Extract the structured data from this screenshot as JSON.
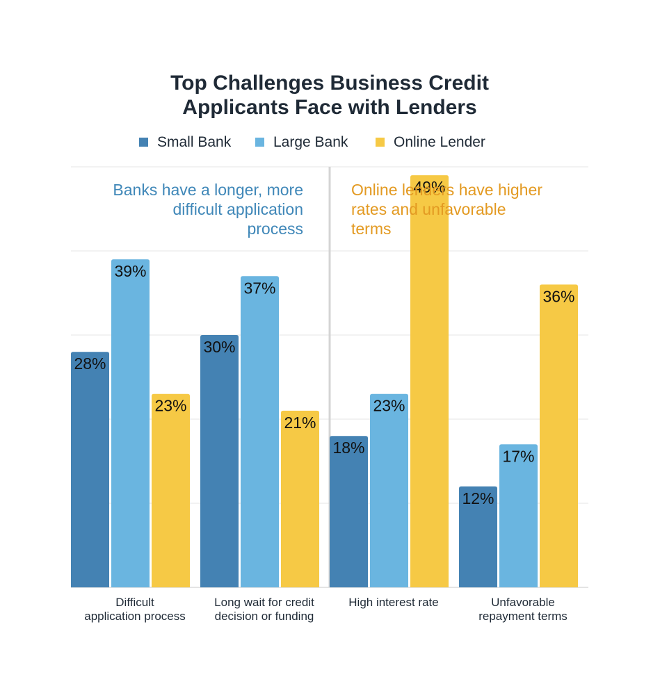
{
  "chart_data": {
    "type": "bar",
    "title_lines": [
      "Top Challenges Business Credit",
      "Applicants Face with Lenders"
    ],
    "categories": [
      [
        "Difficult",
        "application process"
      ],
      [
        "Long wait for credit",
        "decision or funding"
      ],
      [
        "High interest rate"
      ],
      [
        "Unfavorable",
        "repayment terms"
      ]
    ],
    "series": [
      {
        "name": "Small Bank",
        "values": [
          28,
          30,
          18,
          12
        ],
        "color": "#4482b3"
      },
      {
        "name": "Large Bank",
        "values": [
          39,
          37,
          23,
          17
        ],
        "color": "#6ab5e0"
      },
      {
        "name": "Online Lender",
        "values": [
          23,
          21,
          49,
          36
        ],
        "color": "#f6c945"
      }
    ],
    "value_suffix": "%",
    "ylim": [
      0,
      50
    ],
    "grid": true,
    "legend_position": "top",
    "annotations": [
      {
        "lines": [
          "Banks have a longer, more",
          "difficult application",
          "process"
        ],
        "color": "#3f87b8",
        "align": "right",
        "side": "left"
      },
      {
        "lines": [
          "Online lenders have higher",
          "rates and unfavorable",
          "terms"
        ],
        "color": "#e39a22",
        "align": "left",
        "side": "right"
      }
    ],
    "divider_between_groups": true,
    "xlabel": "",
    "ylabel": ""
  }
}
